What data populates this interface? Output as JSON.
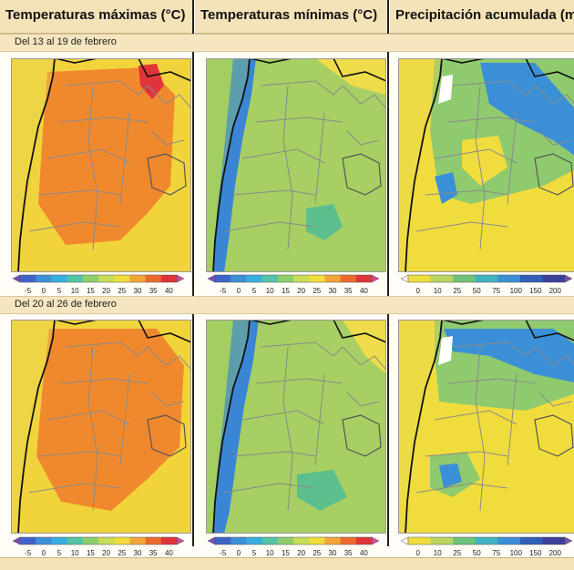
{
  "headers": [
    {
      "title": "Temperaturas máximas (°C)"
    },
    {
      "title": "Temperaturas mínimas (°C)"
    },
    {
      "title": "Precipitación acumulada (mm)"
    }
  ],
  "periods": [
    {
      "label": "Del 13 al 19 de febrero"
    },
    {
      "label": "Del 20 al 26 de febrero"
    }
  ],
  "legends": {
    "temperature": {
      "ticks": [
        "-5",
        "0",
        "5",
        "10",
        "15",
        "20",
        "25",
        "30",
        "35",
        "40"
      ],
      "colors": [
        "#7a4bb8",
        "#3f64c9",
        "#3d8fd8",
        "#37aee0",
        "#55c3a8",
        "#8ccf6b",
        "#c8dc56",
        "#f0dd3d",
        "#f4a53a",
        "#ec6a2e",
        "#e0343a",
        "#d8489c"
      ]
    },
    "precipitation": {
      "ticks": [
        "0",
        "10",
        "25",
        "50",
        "75",
        "100",
        "150",
        "200"
      ],
      "colors": [
        "#ffffff",
        "#f0dd3d",
        "#b7d55f",
        "#6fc27a",
        "#3fb3c0",
        "#3b8fd6",
        "#2f5fb8",
        "#3a3f9c",
        "#7c4fb0"
      ]
    }
  },
  "map_colors": {
    "tmax_main": "#f0892e",
    "tmax_edge": "#f1d43c",
    "tmax_hot": "#e0343a",
    "tmin_main": "#a7cf63",
    "tmin_cool": "#5dbf8e",
    "tmin_cold": "#3b86d4",
    "precip_main": "#f0dd3d",
    "precip_wet": "#3b8fd6",
    "precip_green": "#8fca6e",
    "ocean": "#e9d85a"
  }
}
